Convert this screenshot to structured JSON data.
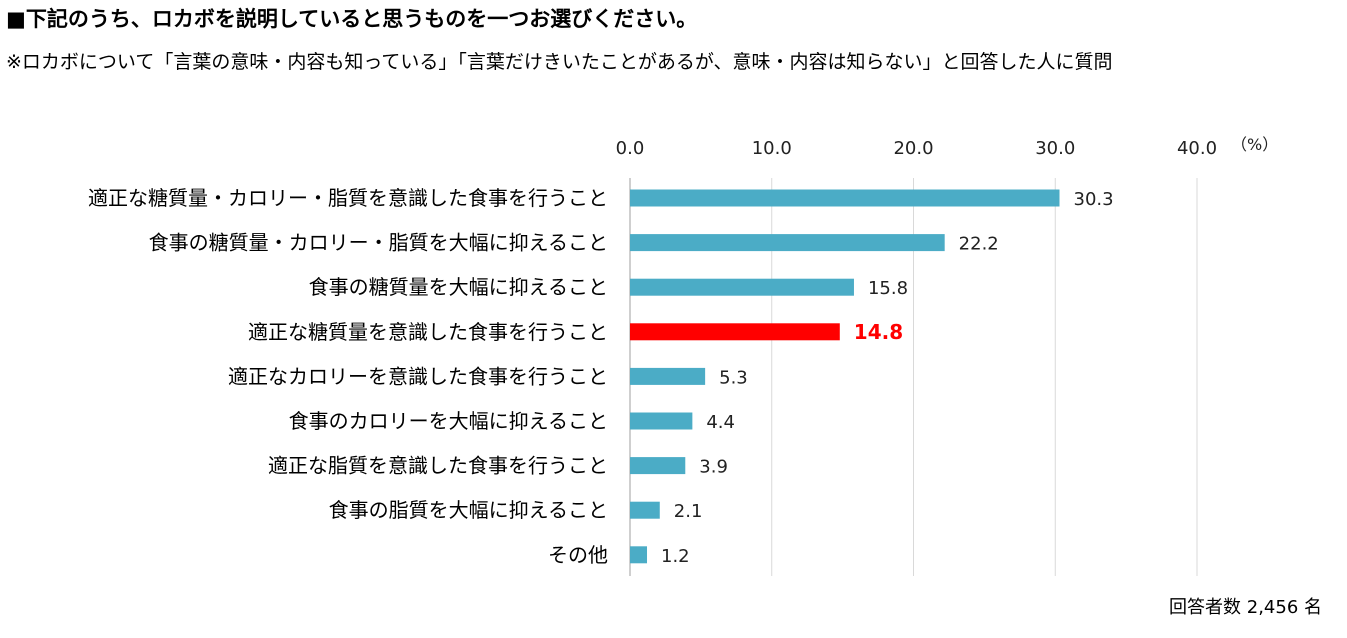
{
  "title": "■下記のうち、ロカボを説明していると思うものを一つお選びください。",
  "subtitle": "※ロカボについて「言葉の意味・内容も知っている」「言葉だけきいたことがあるが、意味・内容は知らない」と回答した人に質問",
  "respondents_note": "回答者数 2,456 名",
  "colors": {
    "bar": "#4bacc6",
    "highlight": "#ff0000",
    "grid": "#d9d9d9",
    "axis": "#bfbfbf"
  },
  "chart_data": {
    "type": "bar",
    "orientation": "horizontal",
    "categories": [
      "適正な糖質量・カロリー・脂質を意識した食事を行うこと",
      "食事の糖質量・カロリー・脂質を大幅に抑えること",
      "食事の糖質量を大幅に抑えること",
      "適正な糖質量を意識した食事を行うこと",
      "適正なカロリーを意識した食事を行うこと",
      "食事のカロリーを大幅に抑えること",
      "適正な脂質を意識した食事を行うこと",
      "食事の脂質を大幅に抑えること",
      "その他"
    ],
    "values": [
      30.3,
      22.2,
      15.8,
      14.8,
      5.3,
      4.4,
      3.9,
      2.1,
      1.2
    ],
    "value_labels": [
      "30.3",
      "22.2",
      "15.8",
      "14.8",
      "5.3",
      "4.4",
      "3.9",
      "2.1",
      "1.2"
    ],
    "highlight_index": 3,
    "xlim": [
      0,
      40
    ],
    "ticks": [
      0,
      10,
      20,
      30,
      40
    ],
    "tick_labels": [
      "0.0",
      "10.0",
      "20.0",
      "30.0",
      "40.0"
    ],
    "unit": "（%）",
    "grid": true,
    "axis_position": "top"
  }
}
